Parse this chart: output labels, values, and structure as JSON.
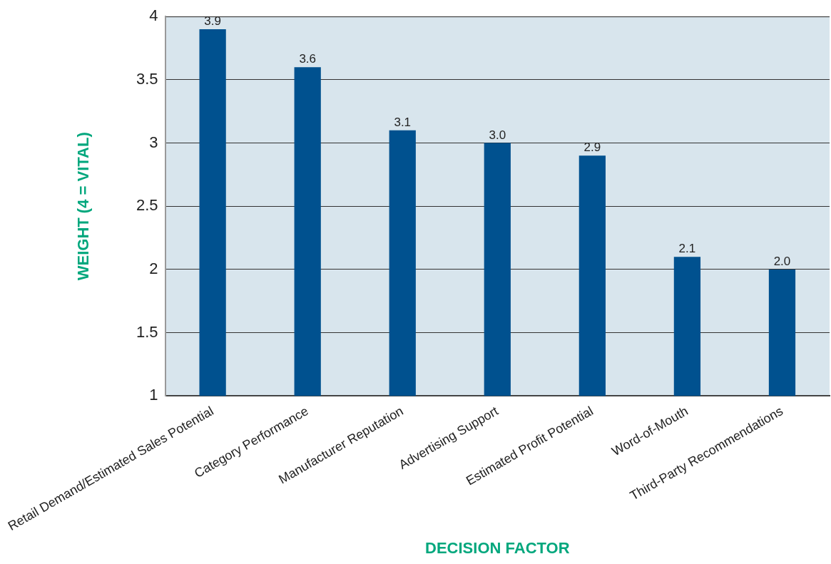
{
  "chart_data": {
    "type": "bar",
    "xlabel": "DECISION FACTOR",
    "ylabel": "WEIGHT (4 = VITAL)",
    "categories": [
      "Retail Demand/Estimated Sales Potential",
      "Category Performance",
      "Manufacturer Reputation",
      "Advertising Support",
      "Estimated Profit Potential",
      "Word-of-Mouth",
      "Third-Party Recommendations"
    ],
    "values": [
      3.9,
      3.6,
      3.1,
      3.0,
      2.9,
      2.1,
      2.0
    ],
    "value_labels": [
      "3.9",
      "3.6",
      "3.1",
      "3.0",
      "2.9",
      "2.1",
      "2.0"
    ],
    "color": "#00518f",
    "ylim": [
      1,
      4
    ],
    "yticks": [
      1,
      1.5,
      2,
      2.5,
      3,
      3.5,
      4
    ],
    "grid": "y",
    "legend": false
  }
}
